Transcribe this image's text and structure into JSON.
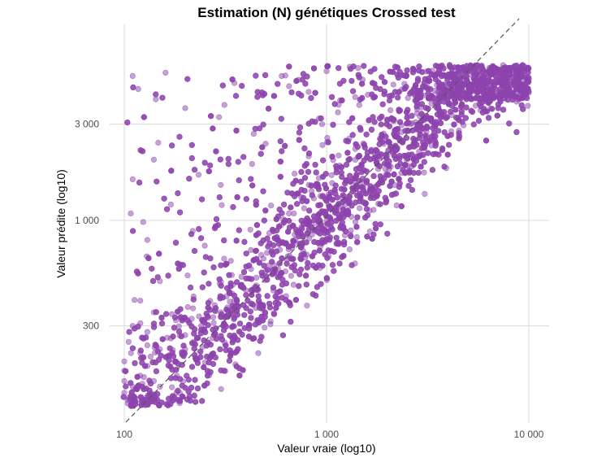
{
  "chart_data": {
    "type": "scatter",
    "title": "Estimation (N) génétiques Crossed test",
    "xlabel": "Valeur vraie (log10)",
    "ylabel": "Valeur prédite (log10)",
    "x_scale": "log10",
    "y_scale": "log10",
    "xlim": [
      100,
      10000
    ],
    "ylim": [
      100,
      7000
    ],
    "x_ticks": [
      100,
      1000,
      10000
    ],
    "x_tick_labels": [
      "100",
      "1 000",
      "10 000"
    ],
    "y_ticks": [
      300,
      1000,
      3000
    ],
    "y_tick_labels": [
      "300",
      "1 000",
      "3 000"
    ],
    "grid": true,
    "reference_line": "y = x",
    "point_color": "#8e44ad",
    "cloud_regions": [
      {
        "x": [
          100,
          10000
        ],
        "y_floor": "approx. 0.5 × true value at low end, rising with x",
        "y_ceiling": 6000
      },
      {
        "dense_near": "y = x, compressed toward ~5000 for true values above 5000"
      }
    ],
    "series": [
      {
        "points": [
          [
            100,
            140
          ],
          [
            100,
            160
          ],
          [
            100,
            180
          ],
          [
            100,
            200
          ],
          [
            105,
            250
          ],
          [
            110,
            150
          ],
          [
            110,
            300
          ],
          [
            110,
            1600
          ],
          [
            110,
            5200
          ],
          [
            120,
            170
          ],
          [
            120,
            220
          ],
          [
            120,
            400
          ],
          [
            130,
            190
          ],
          [
            130,
            280
          ],
          [
            130,
            800
          ],
          [
            140,
            160
          ],
          [
            140,
            350
          ],
          [
            140,
            2000
          ],
          [
            150,
            150
          ],
          [
            150,
            230
          ],
          [
            150,
            500
          ],
          [
            160,
            210
          ],
          [
            160,
            5400
          ],
          [
            170,
            260
          ],
          [
            170,
            1200
          ],
          [
            180,
            200
          ],
          [
            180,
            320
          ],
          [
            190,
            600
          ],
          [
            200,
            230
          ],
          [
            200,
            270
          ],
          [
            200,
            3600
          ],
          [
            220,
            250
          ],
          [
            220,
            420
          ],
          [
            240,
            300
          ],
          [
            250,
            750
          ],
          [
            260,
            330
          ],
          [
            280,
            380
          ],
          [
            300,
            350
          ],
          [
            300,
            1500
          ],
          [
            320,
            420
          ],
          [
            350,
            400
          ],
          [
            350,
            4800
          ],
          [
            380,
            480
          ],
          [
            400,
            450
          ],
          [
            420,
            900
          ],
          [
            450,
            520
          ],
          [
            500,
            560
          ],
          [
            500,
            2400
          ],
          [
            550,
            600
          ],
          [
            600,
            650
          ],
          [
            600,
            5200
          ],
          [
            650,
            720
          ],
          [
            700,
            800
          ],
          [
            750,
            1300
          ],
          [
            800,
            850
          ],
          [
            850,
            950
          ],
          [
            900,
            1000
          ],
          [
            950,
            3000
          ],
          [
            1000,
            1050
          ],
          [
            1000,
            5500
          ],
          [
            1100,
            1150
          ],
          [
            1200,
            1300
          ],
          [
            1300,
            1250
          ],
          [
            1400,
            1500
          ],
          [
            1500,
            1600
          ],
          [
            1600,
            4200
          ],
          [
            1800,
            1800
          ],
          [
            2000,
            2100
          ],
          [
            2200,
            2300
          ],
          [
            2400,
            2500
          ],
          [
            2600,
            3000
          ],
          [
            2800,
            3400
          ],
          [
            3000,
            3300
          ],
          [
            3300,
            3800
          ],
          [
            3600,
            4200
          ],
          [
            4000,
            4400
          ],
          [
            4500,
            4600
          ],
          [
            5000,
            4800
          ],
          [
            5500,
            5000
          ],
          [
            6000,
            5100
          ],
          [
            7000,
            5200
          ],
          [
            8000,
            5300
          ],
          [
            9000,
            5400
          ],
          [
            10000,
            5000
          ],
          [
            10000,
            4300
          ],
          [
            9500,
            5800
          ]
        ]
      }
    ]
  }
}
